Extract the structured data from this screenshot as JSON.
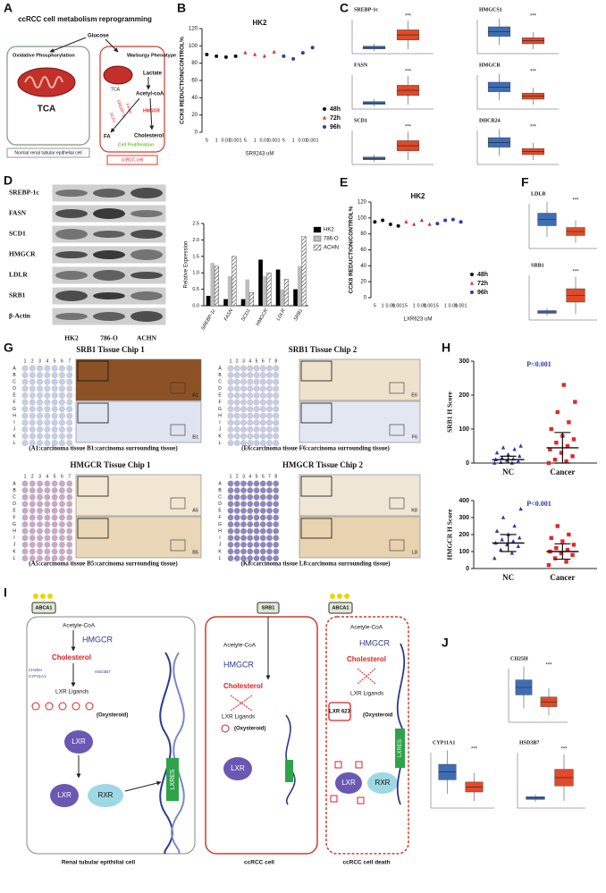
{
  "figure_labels": {
    "a": "A",
    "b": "B",
    "c": "C",
    "d": "D",
    "e": "E",
    "f": "F",
    "g": "G",
    "h": "H",
    "i": "I",
    "j": "J"
  },
  "panel_a": {
    "title": "ccRCC cell metabolism reprogramming",
    "glucose": "Glucose",
    "oxphos": "Oxidative Phosphorylation",
    "tca_left": "TCA",
    "warburg": "Warburgy  Phenotype",
    "lactate": "Lactate",
    "tca_right": "TCA",
    "acetyl": "Acetyl-coA",
    "srebp": "SREBP-1c",
    "fasn": "FASN",
    "scd1": "SCD1",
    "hmgcr": "HMGCR",
    "fa": "FA",
    "cholesterol": "Cholesterol",
    "proliferation": "Cell Proliferation",
    "normal_cell": "Normal renal tubular epithelial cell",
    "ccrcc_cell": "ccRCC  cell"
  },
  "panel_b": {
    "type": "dose-scatter",
    "title": "HK2",
    "y_label": "CCK8 REDUCTION/CONTROL%",
    "x_label": "SR9243  uM",
    "categories": [
      "5",
      "1",
      "0.01",
      "0.001",
      "5",
      "1",
      "0.01",
      "0.001",
      "5",
      "1",
      "0.01",
      "0.001"
    ],
    "ylim": [
      0,
      120
    ],
    "yticks": [
      0,
      20,
      40,
      60,
      80,
      100,
      120
    ],
    "legend": "right",
    "series": [
      {
        "name": "48h",
        "color": "#111111",
        "marker": "circle",
        "values": [
          90,
          88,
          87,
          88,
          null,
          null,
          null,
          null,
          null,
          null,
          null,
          null
        ]
      },
      {
        "name": "72h",
        "color": "#e0262c",
        "marker": "triangle",
        "values": [
          null,
          null,
          null,
          null,
          92,
          90,
          88,
          93,
          null,
          null,
          null,
          null
        ]
      },
      {
        "name": "96h",
        "color": "#2b3fa0",
        "marker": "circle",
        "values": [
          null,
          null,
          null,
          null,
          null,
          null,
          null,
          null,
          88,
          85,
          92,
          98
        ]
      }
    ]
  },
  "panel_c": {
    "plots": [
      {
        "gene": "SREBP-1c",
        "sig": "***"
      },
      {
        "gene": "HMGCS1",
        "sig": "***"
      },
      {
        "gene": "FASN",
        "sig": "***"
      },
      {
        "gene": "HMGCR",
        "sig": "***"
      },
      {
        "gene": "SCD1",
        "sig": "***"
      },
      {
        "gene": "DHCR24",
        "sig": "***"
      }
    ]
  },
  "panel_d": {
    "blot": {
      "rows": [
        "SREBP-1c",
        "FASN",
        "SCD1",
        "HMGCR",
        "LDLR",
        "SRB1",
        "β-Actin"
      ],
      "columns": [
        "HK2",
        "786-O",
        "ACHN"
      ]
    },
    "chart": {
      "type": "bar",
      "y_label": "Relative Expression",
      "categories": [
        "SREBP-1c",
        "FASN",
        "SCD1",
        "HMGCR",
        "LDLR",
        "SRB1"
      ],
      "ylim": [
        0,
        2.5
      ],
      "yticks": [
        {
          "value": 0,
          "label": "0.0"
        },
        {
          "value": 0.5,
          "label": "0.5"
        },
        {
          "value": 1,
          "label": "1.0"
        },
        {
          "value": 1.5,
          "label": "1.5"
        },
        {
          "value": 2,
          "label": "2.0"
        },
        {
          "value": 2.5,
          "label": "2.5"
        }
      ],
      "series": [
        {
          "name": "HK2",
          "color": "#000000",
          "pattern": "solid",
          "values": [
            0.3,
            0.2,
            0.2,
            1.4,
            1.1,
            0.5
          ]
        },
        {
          "name": "786-O",
          "color": "#bdbdbd",
          "pattern": "solid",
          "values": [
            1.3,
            0.9,
            0.8,
            0.9,
            0.5,
            1.2
          ]
        },
        {
          "name": "ACHN",
          "color": "#555555",
          "pattern": "hatch",
          "values": [
            1.2,
            1.5,
            0.4,
            1.0,
            0.8,
            2.1
          ]
        }
      ]
    }
  },
  "panel_e": {
    "type": "dose-scatter",
    "title": "HK2",
    "y_label": "CCK8 REDUCTION/CONTROL%",
    "x_label": "LXR623  uM",
    "categories": [
      "5",
      "1",
      "0.01",
      "0.001",
      "5",
      "1",
      "0.01",
      "0.001",
      "5",
      "1",
      "0.01",
      "0.001"
    ],
    "ylim": [
      0,
      120
    ],
    "yticks": [
      0,
      20,
      40,
      60,
      80,
      100,
      120
    ],
    "legend": "right",
    "series": [
      {
        "name": "48h",
        "color": "#111111",
        "marker": "circle",
        "values": [
          95,
          97,
          92,
          90,
          null,
          null,
          null,
          null,
          null,
          null,
          null,
          null
        ]
      },
      {
        "name": "72h",
        "color": "#e0262c",
        "marker": "triangle",
        "values": [
          null,
          null,
          null,
          null,
          95,
          92,
          97,
          92,
          null,
          null,
          null,
          null
        ]
      },
      {
        "name": "96h",
        "color": "#2b3fa0",
        "marker": "circle",
        "values": [
          null,
          null,
          null,
          null,
          null,
          null,
          null,
          null,
          93,
          97,
          98,
          95
        ]
      }
    ]
  },
  "panel_f": {
    "plots": [
      {
        "gene": "LDLR",
        "sig": "***"
      },
      {
        "gene": "SRB1",
        "sig": "***"
      }
    ]
  },
  "panel_g": {
    "chips": [
      {
        "title": "SRB1 Tissue Chip 1",
        "rows": [
          "A",
          "B",
          "C",
          "D",
          "E",
          "F",
          "G",
          "H",
          "I",
          "J",
          "K",
          "L"
        ],
        "columns": [
          "1",
          "2",
          "3",
          "4",
          "5",
          "6",
          "7"
        ],
        "zoom_labels": [
          "A1",
          "B1"
        ],
        "caption": "(A1:carcinoma tissue    B1:carcinoma surrounding tissue)",
        "core_color": "#c7cfe6"
      },
      {
        "title": "SRB1 Tissue Chip 2",
        "rows": [
          "A",
          "B",
          "C",
          "D",
          "E",
          "F",
          "G",
          "H",
          "I",
          "J",
          "K",
          "L"
        ],
        "columns": [
          "1",
          "2",
          "3",
          "4",
          "5",
          "6",
          "7",
          "8"
        ],
        "zoom_labels": [
          "E6",
          "F6"
        ],
        "caption": "(E6:carcinoma tissue    F6:carcinoma surrounding tissue)",
        "core_color": "#c8cde5"
      },
      {
        "title": "HMGCR Tissue Chip 1",
        "rows": [
          "A",
          "B",
          "C",
          "D",
          "E",
          "F",
          "G",
          "H",
          "I",
          "J",
          "K",
          "L"
        ],
        "columns": [
          "1",
          "2",
          "3",
          "4",
          "5",
          "6",
          "7"
        ],
        "zoom_labels": [
          "A5",
          "B5"
        ],
        "caption": "(A5:carcinoma tissue    B5:carcinoma surrounding tissue)",
        "core_color": "#c9a9c8"
      },
      {
        "title": "HMGCR Tissue Chip 2",
        "rows": [
          "A",
          "B",
          "C",
          "D",
          "E",
          "F",
          "G",
          "H",
          "I",
          "J",
          "K",
          "L"
        ],
        "columns": [
          "1",
          "2",
          "3",
          "4",
          "5",
          "6",
          "7",
          "8"
        ],
        "zoom_labels": [
          "K8",
          "L8"
        ],
        "caption": "(K8:carcinoma tissue    L8:carcinoma surrounding tissue)",
        "core_color": "#8f86c0"
      }
    ]
  },
  "panel_h": {
    "charts": [
      {
        "type": "dot-plot",
        "y_label": "SRB1 H Score",
        "p_value": "P<0.001",
        "ylim": [
          0,
          300
        ],
        "yticks": [
          0,
          100,
          200,
          300
        ],
        "categories": [
          "NC",
          "Cancer"
        ],
        "groups": [
          {
            "color": "#2a3c9a",
            "marker": "triangle",
            "values": [
              0,
              0,
              2,
              5,
              8,
              10,
              12,
              15,
              20,
              25,
              30,
              40,
              45,
              50
            ],
            "mean": 10,
            "sd": 10
          },
          {
            "color": "#e3262c",
            "marker": "square",
            "values": [
              0,
              5,
              10,
              20,
              30,
              40,
              50,
              60,
              70,
              80,
              100,
              120,
              150,
              180,
              230
            ],
            "mean": 45,
            "sd": 45
          }
        ]
      },
      {
        "type": "dot-plot",
        "y_label": "HMGCR H Score",
        "p_value": "P<0.001",
        "ylim": [
          0,
          400
        ],
        "yticks": [
          0,
          100,
          200,
          300,
          400
        ],
        "categories": [
          "NC",
          "Cancer"
        ],
        "groups": [
          {
            "color": "#2a3c9a",
            "marker": "triangle",
            "values": [
              60,
              90,
              110,
              130,
              140,
              150,
              160,
              170,
              180,
              200,
              220,
              250,
              300,
              350
            ],
            "mean": 150,
            "sd": 50
          },
          {
            "color": "#e3262c",
            "marker": "square",
            "values": [
              20,
              40,
              60,
              80,
              90,
              100,
              110,
              120,
              140,
              160,
              180,
              200,
              250
            ],
            "mean": 100,
            "sd": 45
          }
        ]
      }
    ]
  },
  "panel_i": {
    "normal": {
      "transporter": "ABCA1",
      "acetyl": "Acetyle-CoA",
      "hmgcr": "HMGCR",
      "cholesterol": "Cholesterol",
      "ch25h": "CH25H",
      "cyp11a1": "CYP11A1",
      "hsd3b7": "HSD3B7",
      "ligands": "LXR Ligands",
      "oxysteroid": "(Oxysteroid)",
      "lxr": "LXR",
      "rxr": "RXR",
      "lxres": "LXRES",
      "caption": "Renal tubular epithilial cell"
    },
    "ccrcc": {
      "transporter": "SRB1",
      "acetyl": "Acetyle-CoA",
      "hmgcr": "HMGCR",
      "cholesterol": "Cholesterol",
      "ligands": "LXR Ligands",
      "oxysteroid": "(Oxysteroid)",
      "lxr": "LXR",
      "caption": "ccRCC cell"
    },
    "death": {
      "transporter": "ABCA1",
      "acetyl": "Acetyle-CoA",
      "hmgcr": "HMGCR",
      "cholesterol": "Cholesterol",
      "ligands": "LXR Ligands",
      "agonist": "LXR 623",
      "oxysteroid": "(Oxysteroid",
      "lxr": "LXR",
      "rxr": "RXR",
      "lxres": "LXRES",
      "caption": "ccRCC cell death"
    }
  },
  "panel_j": {
    "plots": [
      {
        "gene": "CH25H",
        "sig": "***"
      },
      {
        "gene": "CYP11A1",
        "sig": "***"
      },
      {
        "gene": "HSD3B7",
        "sig": "***"
      }
    ]
  }
}
